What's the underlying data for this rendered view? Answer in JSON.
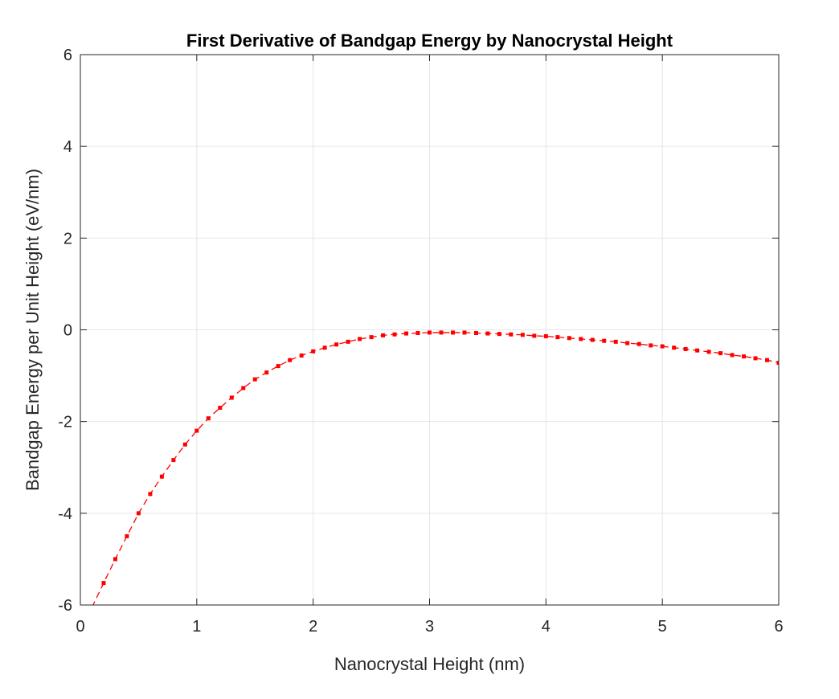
{
  "chart_data": {
    "type": "line",
    "title": "First Derivative of Bandgap Energy by Nanocrystal Height",
    "xlabel": "Nanocrystal Height (nm)",
    "ylabel": "Bandgap Energy per Unit Height (eV/nm)",
    "xlim": [
      0,
      6
    ],
    "ylim": [
      -6,
      6
    ],
    "xticks": [
      0,
      1,
      2,
      3,
      4,
      5,
      6
    ],
    "xtick_labels": [
      "0",
      "1",
      "2",
      "3",
      "4",
      "5",
      "6"
    ],
    "yticks": [
      -6,
      -4,
      -2,
      0,
      2,
      4,
      6
    ],
    "ytick_labels": [
      "-6",
      "-4",
      "-2",
      "0",
      "2",
      "4",
      "6"
    ],
    "grid": true,
    "line_color": "#ff0000",
    "line_style": "dashed",
    "marker": "square",
    "series": [
      {
        "x": [
          0.1,
          0.2,
          0.3,
          0.4,
          0.5,
          0.6,
          0.7,
          0.8,
          0.9,
          1.0,
          1.1,
          1.2,
          1.3,
          1.4,
          1.5,
          1.6,
          1.7,
          1.8,
          1.9,
          2.0,
          2.1,
          2.2,
          2.3,
          2.4,
          2.5,
          2.6,
          2.7,
          2.8,
          2.9,
          3.0,
          3.1,
          3.2,
          3.3,
          3.4,
          3.5,
          3.6,
          3.7,
          3.8,
          3.9,
          4.0,
          4.1,
          4.2,
          4.3,
          4.4,
          4.5,
          4.6,
          4.7,
          4.8,
          4.9,
          5.0,
          5.1,
          5.2,
          5.3,
          5.4,
          5.5,
          5.6,
          5.7,
          5.8,
          5.9,
          6.0
        ],
        "y": [
          -6.05,
          -5.52,
          -5.0,
          -4.5,
          -4.0,
          -3.58,
          -3.2,
          -2.84,
          -2.5,
          -2.2,
          -1.93,
          -1.7,
          -1.48,
          -1.27,
          -1.08,
          -0.93,
          -0.79,
          -0.66,
          -0.56,
          -0.47,
          -0.39,
          -0.32,
          -0.26,
          -0.2,
          -0.16,
          -0.12,
          -0.1,
          -0.08,
          -0.07,
          -0.06,
          -0.06,
          -0.06,
          -0.06,
          -0.07,
          -0.08,
          -0.09,
          -0.1,
          -0.11,
          -0.13,
          -0.14,
          -0.16,
          -0.18,
          -0.2,
          -0.22,
          -0.24,
          -0.26,
          -0.29,
          -0.31,
          -0.34,
          -0.36,
          -0.39,
          -0.42,
          -0.45,
          -0.48,
          -0.51,
          -0.55,
          -0.58,
          -0.62,
          -0.66,
          -0.72
        ]
      }
    ]
  }
}
